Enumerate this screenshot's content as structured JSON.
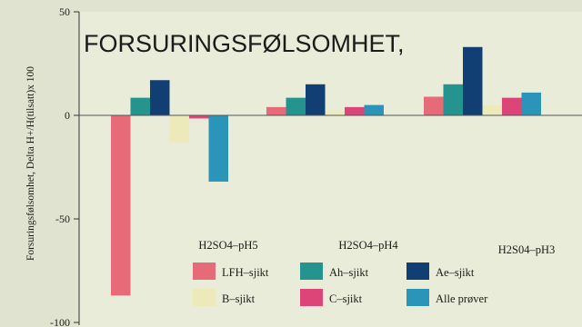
{
  "chart_data": {
    "type": "bar",
    "title": "FORSURINGSFØLSOMHET,",
    "ylabel": "Forsuringsfølsomhet, Delta H+/H(tilsatt)x 100",
    "xlabel": "",
    "ylim": [
      -100,
      50
    ],
    "yticks": [
      50,
      0,
      -50,
      -100
    ],
    "grid": false,
    "legend_position": "bottom-right",
    "categories": [
      "H2SO4–pH5",
      "H2SO4–pH4",
      "H2S04–pH3"
    ],
    "series": [
      {
        "name": "LFH–sjikt",
        "color": "#e66a78",
        "values": [
          -87,
          4,
          9
        ]
      },
      {
        "name": "Ah–sjikt",
        "color": "#25948e",
        "values": [
          8.5,
          8.5,
          15
        ]
      },
      {
        "name": "Ae–sjikt",
        "color": "#123f73",
        "values": [
          17,
          15,
          33
        ]
      },
      {
        "name": "B–sjikt",
        "color": "#edeaba",
        "values": [
          -13,
          2,
          5
        ]
      },
      {
        "name": "C–sjikt",
        "color": "#dd4477",
        "values": [
          -1.5,
          4,
          8.5
        ]
      },
      {
        "name": "Alle prøver",
        "color": "#2a95b8",
        "values": [
          -32,
          5,
          11
        ]
      }
    ]
  }
}
